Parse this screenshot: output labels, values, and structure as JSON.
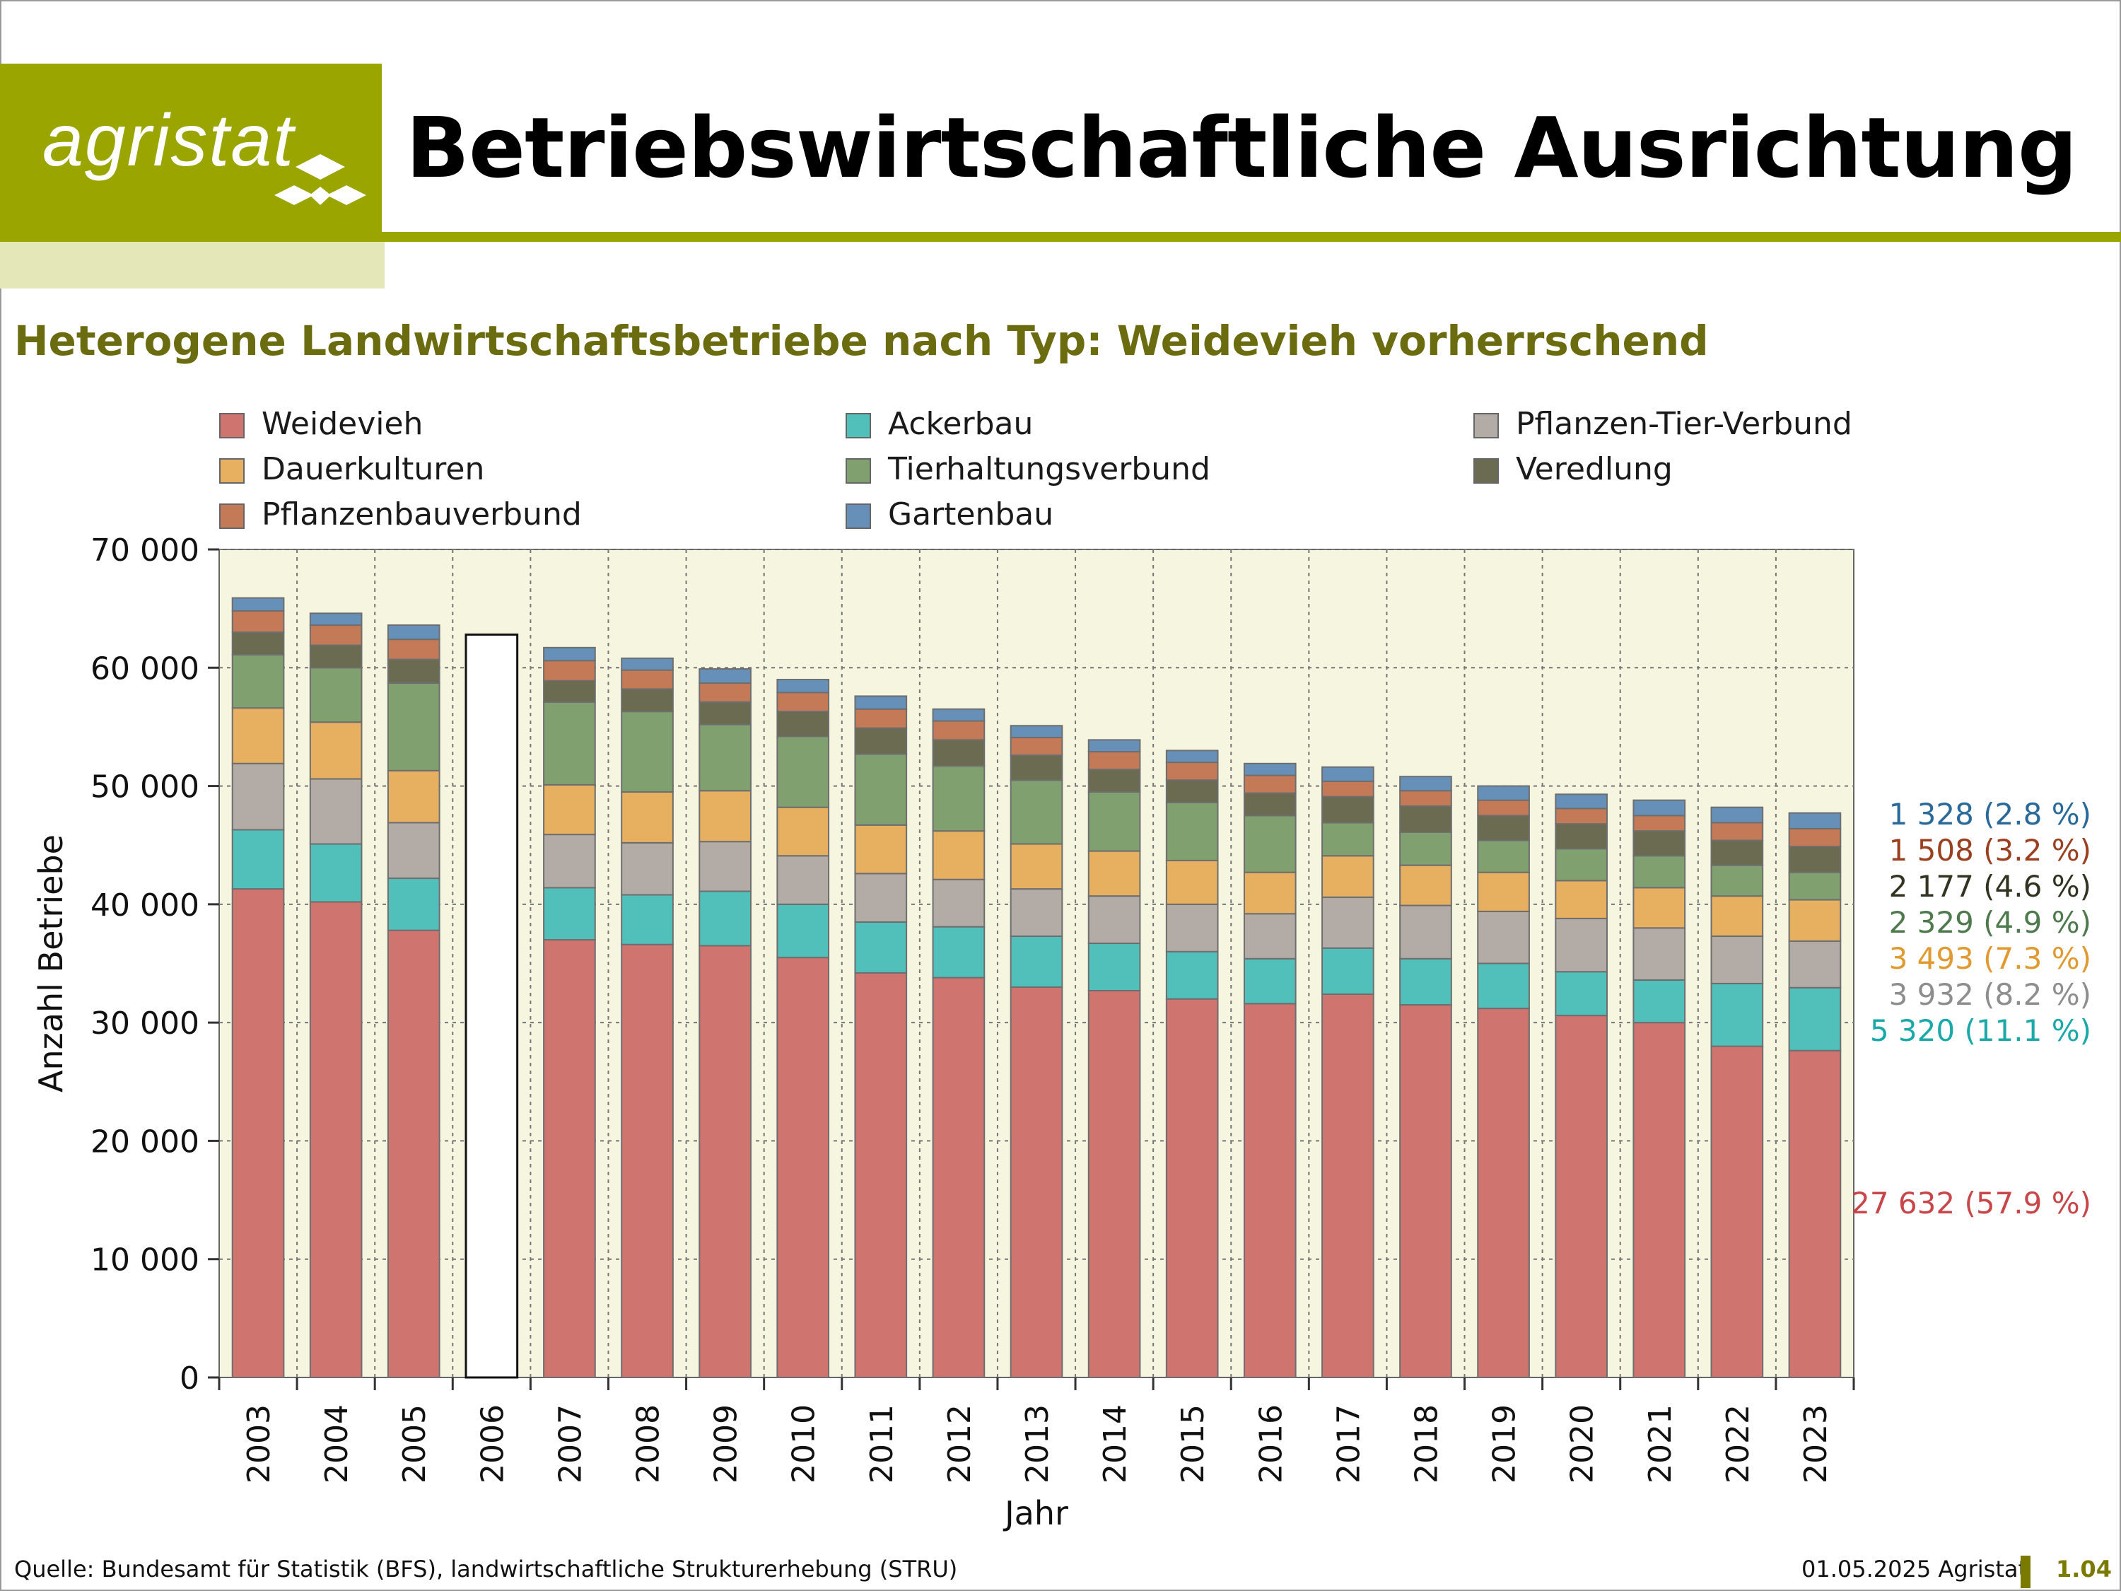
{
  "brand": {
    "logo_text": "agristat",
    "color": "#9aa500"
  },
  "page_title": "Betriebswirtschaftliche Ausrichtung",
  "subtitle": "Heterogene Landwirtschaftsbetriebe nach Typ: Weidevieh vorherrschend",
  "footer": {
    "source": "Quelle: Bundesamt für Statistik (BFS), landwirtschaftliche Strukturerhebung (STRU)",
    "date": "01.05.2025 Agristat",
    "page": "1.04"
  },
  "chart_data": {
    "type": "bar",
    "stacked": true,
    "xlabel": "Jahr",
    "ylabel": "Anzahl Betriebe",
    "ylim": [
      0,
      70000
    ],
    "yticks": [
      0,
      10000,
      20000,
      30000,
      40000,
      50000,
      60000,
      70000
    ],
    "ytick_labels": [
      "0",
      "10 000",
      "20 000",
      "30 000",
      "40 000",
      "50 000",
      "60 000",
      "70 000"
    ],
    "grid": true,
    "legend_position": "top",
    "categories": [
      "2003",
      "2004",
      "2005",
      "2006",
      "2007",
      "2008",
      "2009",
      "2010",
      "2011",
      "2012",
      "2013",
      "2014",
      "2015",
      "2016",
      "2017",
      "2018",
      "2019",
      "2020",
      "2021",
      "2022",
      "2023"
    ],
    "total_only": {
      "2006": 62800
    },
    "series": [
      {
        "name": "Weidevieh",
        "color": "#d07470",
        "values": [
          41300,
          40200,
          37800,
          null,
          37000,
          36600,
          36500,
          35500,
          34200,
          33800,
          33000,
          32700,
          32000,
          31600,
          32400,
          31500,
          31200,
          30600,
          30000,
          28000,
          27632
        ]
      },
      {
        "name": "Ackerbau",
        "color": "#52c0ba",
        "values": [
          5000,
          4900,
          4400,
          null,
          4400,
          4200,
          4600,
          4500,
          4300,
          4300,
          4300,
          4000,
          4000,
          3800,
          3900,
          3900,
          3800,
          3700,
          3600,
          5300,
          5320
        ]
      },
      {
        "name": "Pflanzen-Tier-Verbund",
        "color": "#b3aca6",
        "values": [
          5600,
          5500,
          4700,
          null,
          4500,
          4400,
          4200,
          4100,
          4100,
          4000,
          4000,
          4000,
          4000,
          3800,
          4300,
          4500,
          4400,
          4500,
          4400,
          4000,
          3932
        ]
      },
      {
        "name": "Dauerkulturen",
        "color": "#e6b060",
        "values": [
          4700,
          4800,
          4400,
          null,
          4200,
          4300,
          4300,
          4100,
          4100,
          4100,
          3800,
          3800,
          3700,
          3500,
          3500,
          3400,
          3300,
          3200,
          3400,
          3400,
          3493
        ]
      },
      {
        "name": "Tierhaltungsverbund",
        "color": "#80a070",
        "values": [
          4500,
          4600,
          7400,
          null,
          7000,
          6800,
          5600,
          6000,
          6000,
          5500,
          5400,
          5000,
          4900,
          4800,
          2800,
          2800,
          2700,
          2700,
          2700,
          2600,
          2329
        ]
      },
      {
        "name": "Veredlung",
        "color": "#6a6b50",
        "values": [
          1900,
          1900,
          2000,
          null,
          1800,
          1900,
          1900,
          2100,
          2200,
          2200,
          2100,
          1900,
          1900,
          1900,
          2200,
          2200,
          2100,
          2100,
          2100,
          2100,
          2177
        ]
      },
      {
        "name": "Pflanzenbauverbund",
        "color": "#c47a56",
        "values": [
          1800,
          1700,
          1700,
          null,
          1700,
          1600,
          1600,
          1600,
          1600,
          1600,
          1500,
          1500,
          1500,
          1500,
          1300,
          1300,
          1300,
          1300,
          1300,
          1500,
          1508
        ]
      },
      {
        "name": "Gartenbau",
        "color": "#6690b8",
        "values": [
          1100,
          1000,
          1200,
          null,
          1100,
          1000,
          1200,
          1100,
          1100,
          1000,
          1000,
          1000,
          1000,
          1000,
          1200,
          1200,
          1200,
          1200,
          1300,
          1300,
          1328
        ]
      }
    ],
    "annotations_2023": [
      {
        "series": "Gartenbau",
        "value": "1 328",
        "pct": "(2.8 %)",
        "color": "#2a6a9a"
      },
      {
        "series": "Pflanzenbauverbund",
        "value": "1 508",
        "pct": "(3.2 %)",
        "color": "#9a4020"
      },
      {
        "series": "Veredlung",
        "value": "2 177",
        "pct": "(4.6 %)",
        "color": "#333322"
      },
      {
        "series": "Tierhaltungsverbund",
        "value": "2 329",
        "pct": "(4.9 %)",
        "color": "#4e7a4e"
      },
      {
        "series": "Dauerkulturen",
        "value": "3 493",
        "pct": "(7.3 %)",
        "color": "#e09a30"
      },
      {
        "series": "Pflanzen-Tier-Verbund",
        "value": "3 932",
        "pct": "(8.2 %)",
        "color": "#8e8e8e"
      },
      {
        "series": "Ackerbau",
        "value": "5 320",
        "pct": "(11.1 %)",
        "color": "#1aa8a8"
      },
      {
        "series": "Weidevieh",
        "value": "27 632",
        "pct": "(57.9 %)",
        "color": "#c8464a"
      }
    ],
    "plot_bg": "#f5f5e0"
  }
}
